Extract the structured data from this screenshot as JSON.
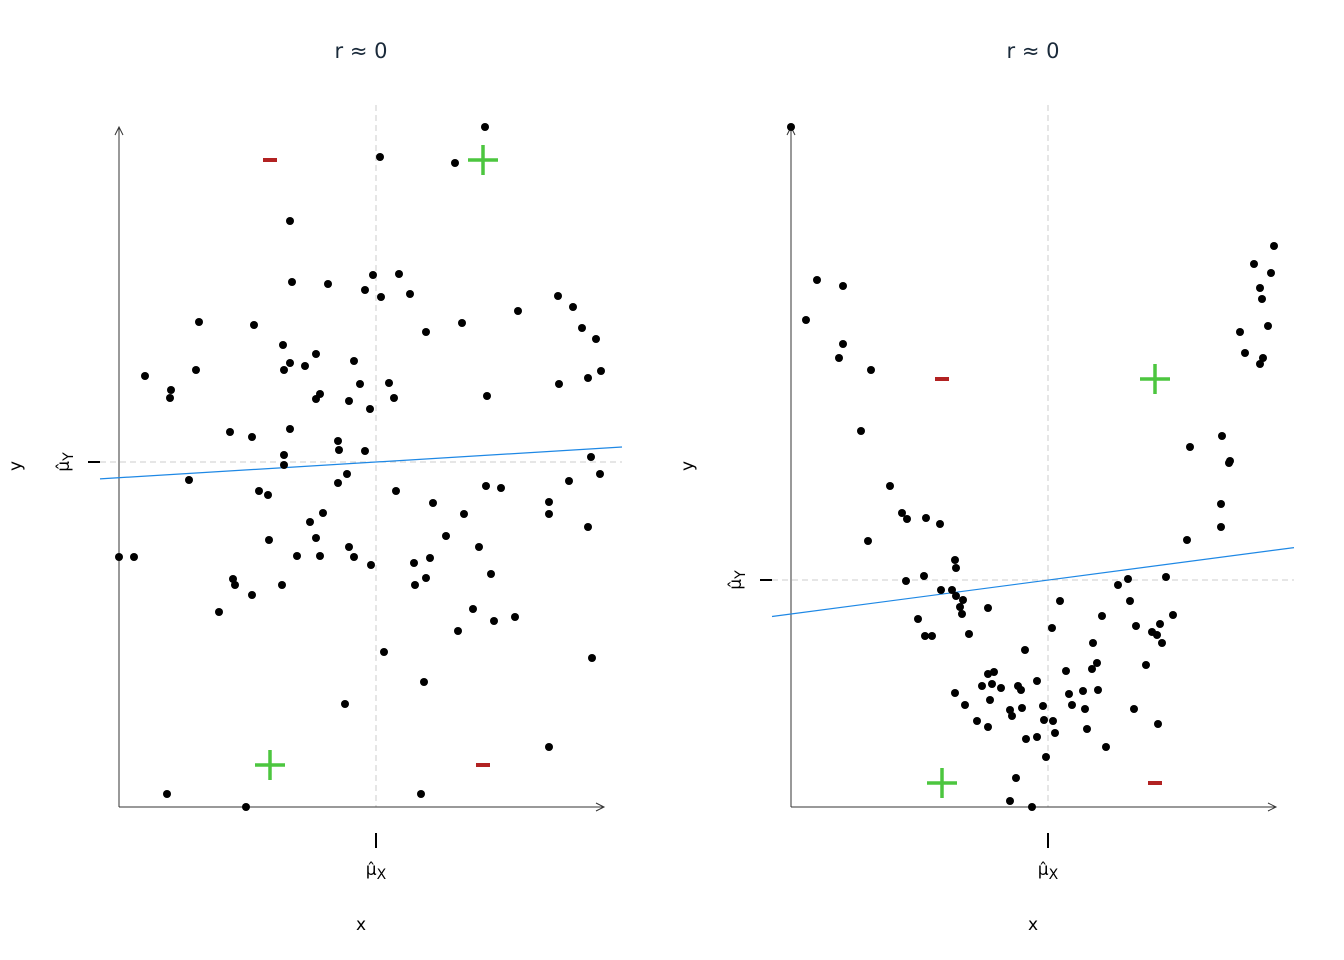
{
  "chart_data": [
    {
      "type": "scatter",
      "title": "r ≈ 0",
      "xlabel": "x",
      "ylabel": "y",
      "mean_x_label": {
        "symbol": "μ̂",
        "sub": "X"
      },
      "mean_y_label": {
        "symbol": "μ̂",
        "sub": "Y"
      },
      "mean_x": 25.7,
      "mean_y": 34.5,
      "xlim": [
        0,
        48.5
      ],
      "ylim": [
        0,
        68
      ],
      "grid": false,
      "regression_line": {
        "slope": 0.061,
        "intercept": 32.93,
        "color": "#1e88e5"
      },
      "quadrant_signs": {
        "top_left": "-",
        "top_right": "+",
        "bottom_left": "+",
        "bottom_right": "-"
      },
      "points": [
        [
          36.6,
          68
        ],
        [
          26.1,
          65
        ],
        [
          33.6,
          64.4
        ],
        [
          17.1,
          58.6
        ],
        [
          25.4,
          53.2
        ],
        [
          28,
          53.3
        ],
        [
          17.3,
          52.5
        ],
        [
          20.9,
          52.3
        ],
        [
          24.6,
          51.7
        ],
        [
          29.1,
          51.3
        ],
        [
          26.2,
          51
        ],
        [
          43.9,
          51.1
        ],
        [
          45.4,
          50
        ],
        [
          39.9,
          49.6
        ],
        [
          8,
          48.5
        ],
        [
          13.5,
          48.2
        ],
        [
          34.3,
          48.4
        ],
        [
          30.7,
          47.5
        ],
        [
          46.3,
          47.9
        ],
        [
          47.7,
          46.8
        ],
        [
          16.4,
          46.2
        ],
        [
          19.7,
          45.3
        ],
        [
          23.5,
          44.6
        ],
        [
          17.1,
          44.4
        ],
        [
          18.6,
          44.1
        ],
        [
          16.5,
          43.7
        ],
        [
          7.7,
          43.7
        ],
        [
          2.6,
          43.1
        ],
        [
          48.2,
          43.6
        ],
        [
          46.9,
          42.9
        ],
        [
          44,
          42.3
        ],
        [
          24.1,
          42.3
        ],
        [
          27,
          42.4
        ],
        [
          5.2,
          41.7
        ],
        [
          5.1,
          40.9
        ],
        [
          20.1,
          41.3
        ],
        [
          19.7,
          40.8
        ],
        [
          23,
          40.6
        ],
        [
          27.5,
          40.9
        ],
        [
          36.8,
          41.1
        ],
        [
          25.1,
          39.8
        ],
        [
          11.1,
          37.5
        ],
        [
          17.1,
          37.8
        ],
        [
          13.3,
          37
        ],
        [
          21.9,
          36.6
        ],
        [
          22,
          35.7
        ],
        [
          24.6,
          35.6
        ],
        [
          16.5,
          35.2
        ],
        [
          16.5,
          34.2
        ],
        [
          47.2,
          35
        ],
        [
          48.1,
          33.3
        ],
        [
          22.8,
          33.3
        ],
        [
          7,
          32.7
        ],
        [
          21.9,
          32.4
        ],
        [
          45,
          32.6
        ],
        [
          36.7,
          32.1
        ],
        [
          38.2,
          31.9
        ],
        [
          14,
          31.6
        ],
        [
          14.9,
          31.2
        ],
        [
          27.7,
          31.6
        ],
        [
          43,
          30.5
        ],
        [
          31.4,
          30.4
        ],
        [
          43,
          29.3
        ],
        [
          20.4,
          29.4
        ],
        [
          34.5,
          29.3
        ],
        [
          19.1,
          28.5
        ],
        [
          46.9,
          28
        ],
        [
          32.7,
          27.1
        ],
        [
          19.7,
          26.9
        ],
        [
          15,
          26.7
        ],
        [
          23,
          26
        ],
        [
          36,
          26
        ],
        [
          17.8,
          25.1
        ],
        [
          20.1,
          25.1
        ],
        [
          23.5,
          25
        ],
        [
          31.1,
          24.9
        ],
        [
          0,
          25
        ],
        [
          1.5,
          25
        ],
        [
          25.2,
          24.2
        ],
        [
          29.5,
          24.4
        ],
        [
          37.2,
          23.3
        ],
        [
          30.7,
          22.9
        ],
        [
          29.6,
          22.2
        ],
        [
          11.4,
          22.8
        ],
        [
          11.6,
          22.2
        ],
        [
          16.3,
          22.2
        ],
        [
          13.3,
          21.2
        ],
        [
          10,
          19.5
        ],
        [
          35.4,
          19.8
        ],
        [
          39.6,
          19
        ],
        [
          37.5,
          18.6
        ],
        [
          33.9,
          17.6
        ],
        [
          47.3,
          14.9
        ],
        [
          26.5,
          15.5
        ],
        [
          30.5,
          12.5
        ],
        [
          22.6,
          10.3
        ],
        [
          43,
          6
        ],
        [
          4.8,
          1.3
        ],
        [
          30.2,
          1.3
        ],
        [
          12.7,
          0
        ]
      ]
    },
    {
      "type": "scatter",
      "title": "r ≈ 0",
      "xlabel": "x",
      "ylabel": "y",
      "mean_x_label": {
        "symbol": "μ̂",
        "sub": "X"
      },
      "mean_y_label": {
        "symbol": "μ̂",
        "sub": "Y"
      },
      "mean_x": 25.7,
      "mean_y": 22.7,
      "xlim": [
        0,
        48.5
      ],
      "ylim": [
        0,
        68
      ],
      "grid": false,
      "regression_line": {
        "slope": 0.132,
        "intercept": 19.3,
        "color": "#1e88e5"
      },
      "quadrant_signs": {
        "top_left": "-",
        "top_right": "+",
        "bottom_left": "+",
        "bottom_right": "-"
      },
      "points": [
        [
          0,
          68
        ],
        [
          2.6,
          52.7
        ],
        [
          5.2,
          52.1
        ],
        [
          1.5,
          48.7
        ],
        [
          5.2,
          46.3
        ],
        [
          4.8,
          44.9
        ],
        [
          8,
          43.7
        ],
        [
          7,
          37.6
        ],
        [
          9.9,
          32.1
        ],
        [
          11.1,
          29.4
        ],
        [
          11.6,
          28.8
        ],
        [
          13.5,
          28.9
        ],
        [
          14.9,
          28.3
        ],
        [
          7.7,
          26.6
        ],
        [
          16.4,
          24.7
        ],
        [
          16.5,
          23.9
        ],
        [
          13.3,
          23.1
        ],
        [
          11.5,
          22.6
        ],
        [
          15,
          21.7
        ],
        [
          16.1,
          21.7
        ],
        [
          16.5,
          21.1
        ],
        [
          17.2,
          20.7
        ],
        [
          17.1,
          19.3
        ],
        [
          16.9,
          20
        ],
        [
          19.7,
          19.9
        ],
        [
          12.7,
          18.8
        ],
        [
          17.8,
          17.3
        ],
        [
          13.4,
          17.1
        ],
        [
          14.1,
          17.1
        ],
        [
          26.9,
          20.6
        ],
        [
          26.1,
          17.9
        ],
        [
          23.4,
          15.7
        ],
        [
          20.3,
          13.5
        ],
        [
          19.7,
          13.3
        ],
        [
          19.1,
          12.1
        ],
        [
          20.1,
          12.3
        ],
        [
          21,
          11.9
        ],
        [
          22.7,
          12.1
        ],
        [
          23,
          11.7
        ],
        [
          24.6,
          12.6
        ],
        [
          16.4,
          11.4
        ],
        [
          17.4,
          10.2
        ],
        [
          19.9,
          10.7
        ],
        [
          18.6,
          8.6
        ],
        [
          19.7,
          8
        ],
        [
          21.9,
          9.7
        ],
        [
          22.1,
          9.1
        ],
        [
          23.1,
          9.9
        ],
        [
          25.2,
          10.1
        ],
        [
          25.3,
          8.7
        ],
        [
          26.2,
          8.6
        ],
        [
          26.4,
          7.4
        ],
        [
          23.5,
          6.8
        ],
        [
          24.6,
          7
        ],
        [
          25.5,
          5
        ],
        [
          22.5,
          2.9
        ],
        [
          21.9,
          0.6
        ],
        [
          24.1,
          0
        ],
        [
          27.5,
          13.6
        ],
        [
          27.8,
          11.3
        ],
        [
          28.1,
          10.2
        ],
        [
          29.2,
          11.6
        ],
        [
          29.4,
          9.8
        ],
        [
          29.6,
          7.8
        ],
        [
          30.7,
          11.7
        ],
        [
          30.6,
          14.4
        ],
        [
          30.2,
          16.4
        ],
        [
          31.5,
          6
        ],
        [
          30.1,
          13.8
        ],
        [
          31.1,
          19.1
        ],
        [
          32.7,
          22.2
        ],
        [
          33.7,
          22.8
        ],
        [
          33.9,
          20.6
        ],
        [
          34.5,
          18.1
        ],
        [
          35.5,
          14.2
        ],
        [
          36.1,
          17.5
        ],
        [
          36.6,
          17.2
        ],
        [
          36.9,
          18.3
        ],
        [
          37.1,
          16.4
        ],
        [
          38.2,
          19.2
        ],
        [
          37.5,
          23
        ],
        [
          34.3,
          9.8
        ],
        [
          36.7,
          8.3
        ],
        [
          39.6,
          26.7
        ],
        [
          39.9,
          36
        ],
        [
          43.1,
          37.1
        ],
        [
          43.9,
          34.6
        ],
        [
          43.8,
          34.4
        ],
        [
          43,
          30.3
        ],
        [
          43,
          28
        ],
        [
          44.9,
          47.5
        ],
        [
          45.4,
          45.4
        ],
        [
          46.3,
          54.3
        ],
        [
          46.9,
          51.9
        ],
        [
          47.1,
          50.8
        ],
        [
          47.7,
          48.1
        ],
        [
          47.2,
          44.9
        ],
        [
          46.9,
          44.3
        ],
        [
          48,
          53.4
        ],
        [
          48.3,
          56.1
        ]
      ]
    }
  ],
  "colors": {
    "plus": "#4cc63f",
    "minus": "#b22222",
    "points": "#000000",
    "guide": "#cccccc"
  }
}
